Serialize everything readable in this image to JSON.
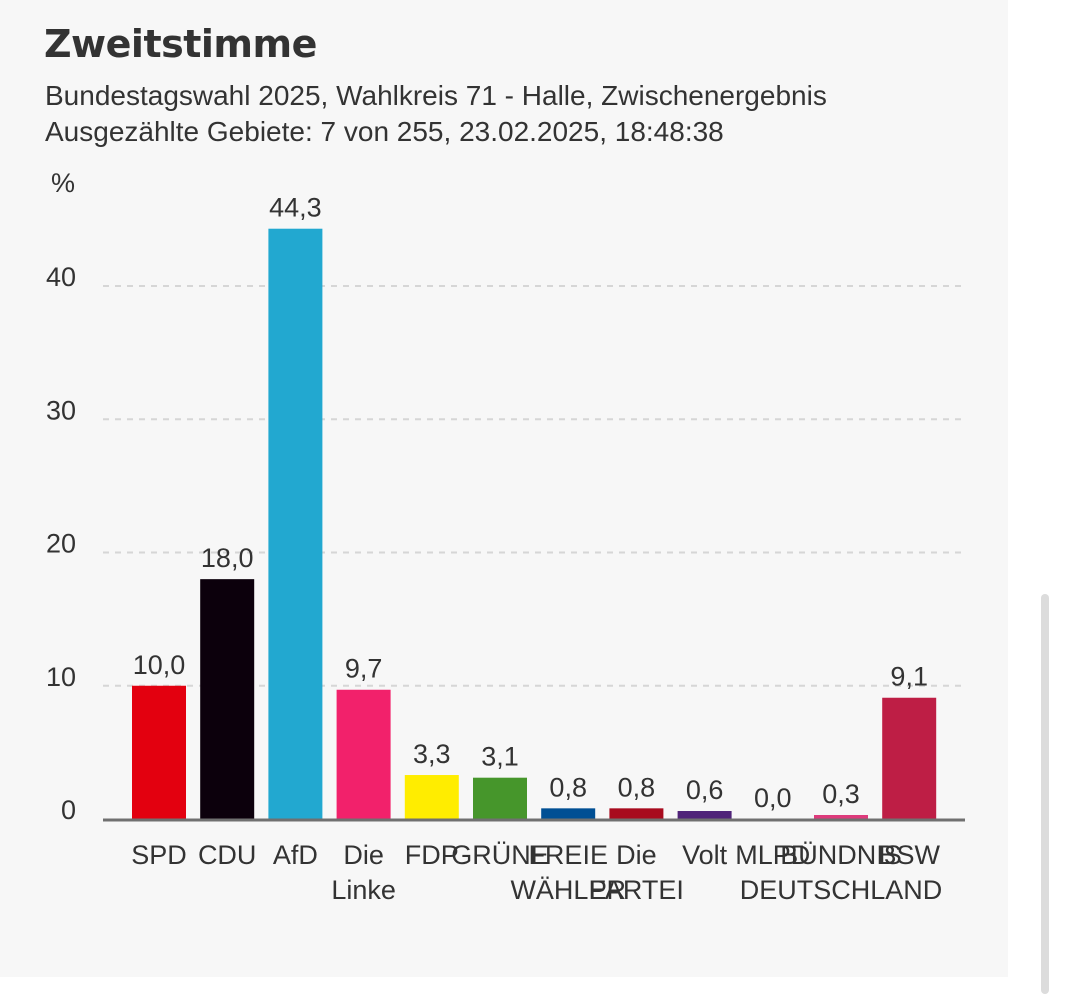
{
  "header": {
    "title": "Zweitstimme",
    "subtitle_line1": "Bundestagswahl 2025, Wahlkreis 71 - Halle, Zwischenergebnis",
    "subtitle_line2": "Ausgezählte Gebiete: 7 von 255, 23.02.2025, 18:48:38"
  },
  "chart_data": {
    "type": "bar",
    "title": "Zweitstimme",
    "subtitle": "Bundestagswahl 2025, Wahlkreis 71 - Halle, Zwischenergebnis",
    "xlabel": "",
    "ylabel": "%",
    "ylim": [
      0,
      45
    ],
    "yticks": [
      0,
      10,
      20,
      30,
      40
    ],
    "grid": true,
    "grid_style": "dashed",
    "legend": "none",
    "categories": [
      [
        "SPD"
      ],
      [
        "CDU"
      ],
      [
        "AfD"
      ],
      [
        "Die",
        "Linke"
      ],
      [
        "FDP"
      ],
      [
        "GRÜNE"
      ],
      [
        "FREIE",
        "WÄHLER"
      ],
      [
        "Die",
        "PARTEI"
      ],
      [
        "Volt"
      ],
      [
        "MLPD"
      ],
      [
        "BÜNDNIS",
        "DEUTSCHLAND"
      ],
      [
        "BSW"
      ]
    ],
    "values": [
      10.0,
      18.0,
      44.3,
      9.7,
      3.3,
      3.1,
      0.8,
      0.8,
      0.6,
      0.0,
      0.3,
      9.1
    ],
    "value_labels": [
      "10,0",
      "18,0",
      "44,3",
      "9,7",
      "3,3",
      "3,1",
      "0,8",
      "0,8",
      "0,6",
      "0,0",
      "0,3",
      "9,1"
    ],
    "colors": [
      "#e3000f",
      "#0c000c",
      "#22a8d0",
      "#f2216b",
      "#ffed00",
      "#46962b",
      "#004f94",
      "#a80b1e",
      "#502379",
      "#c00000",
      "#de3b7c",
      "#be1e45"
    ]
  },
  "colors": {
    "background": "#f7f7f7",
    "text": "#333333",
    "grid": "#d6d6d6",
    "axis": "#707070"
  }
}
